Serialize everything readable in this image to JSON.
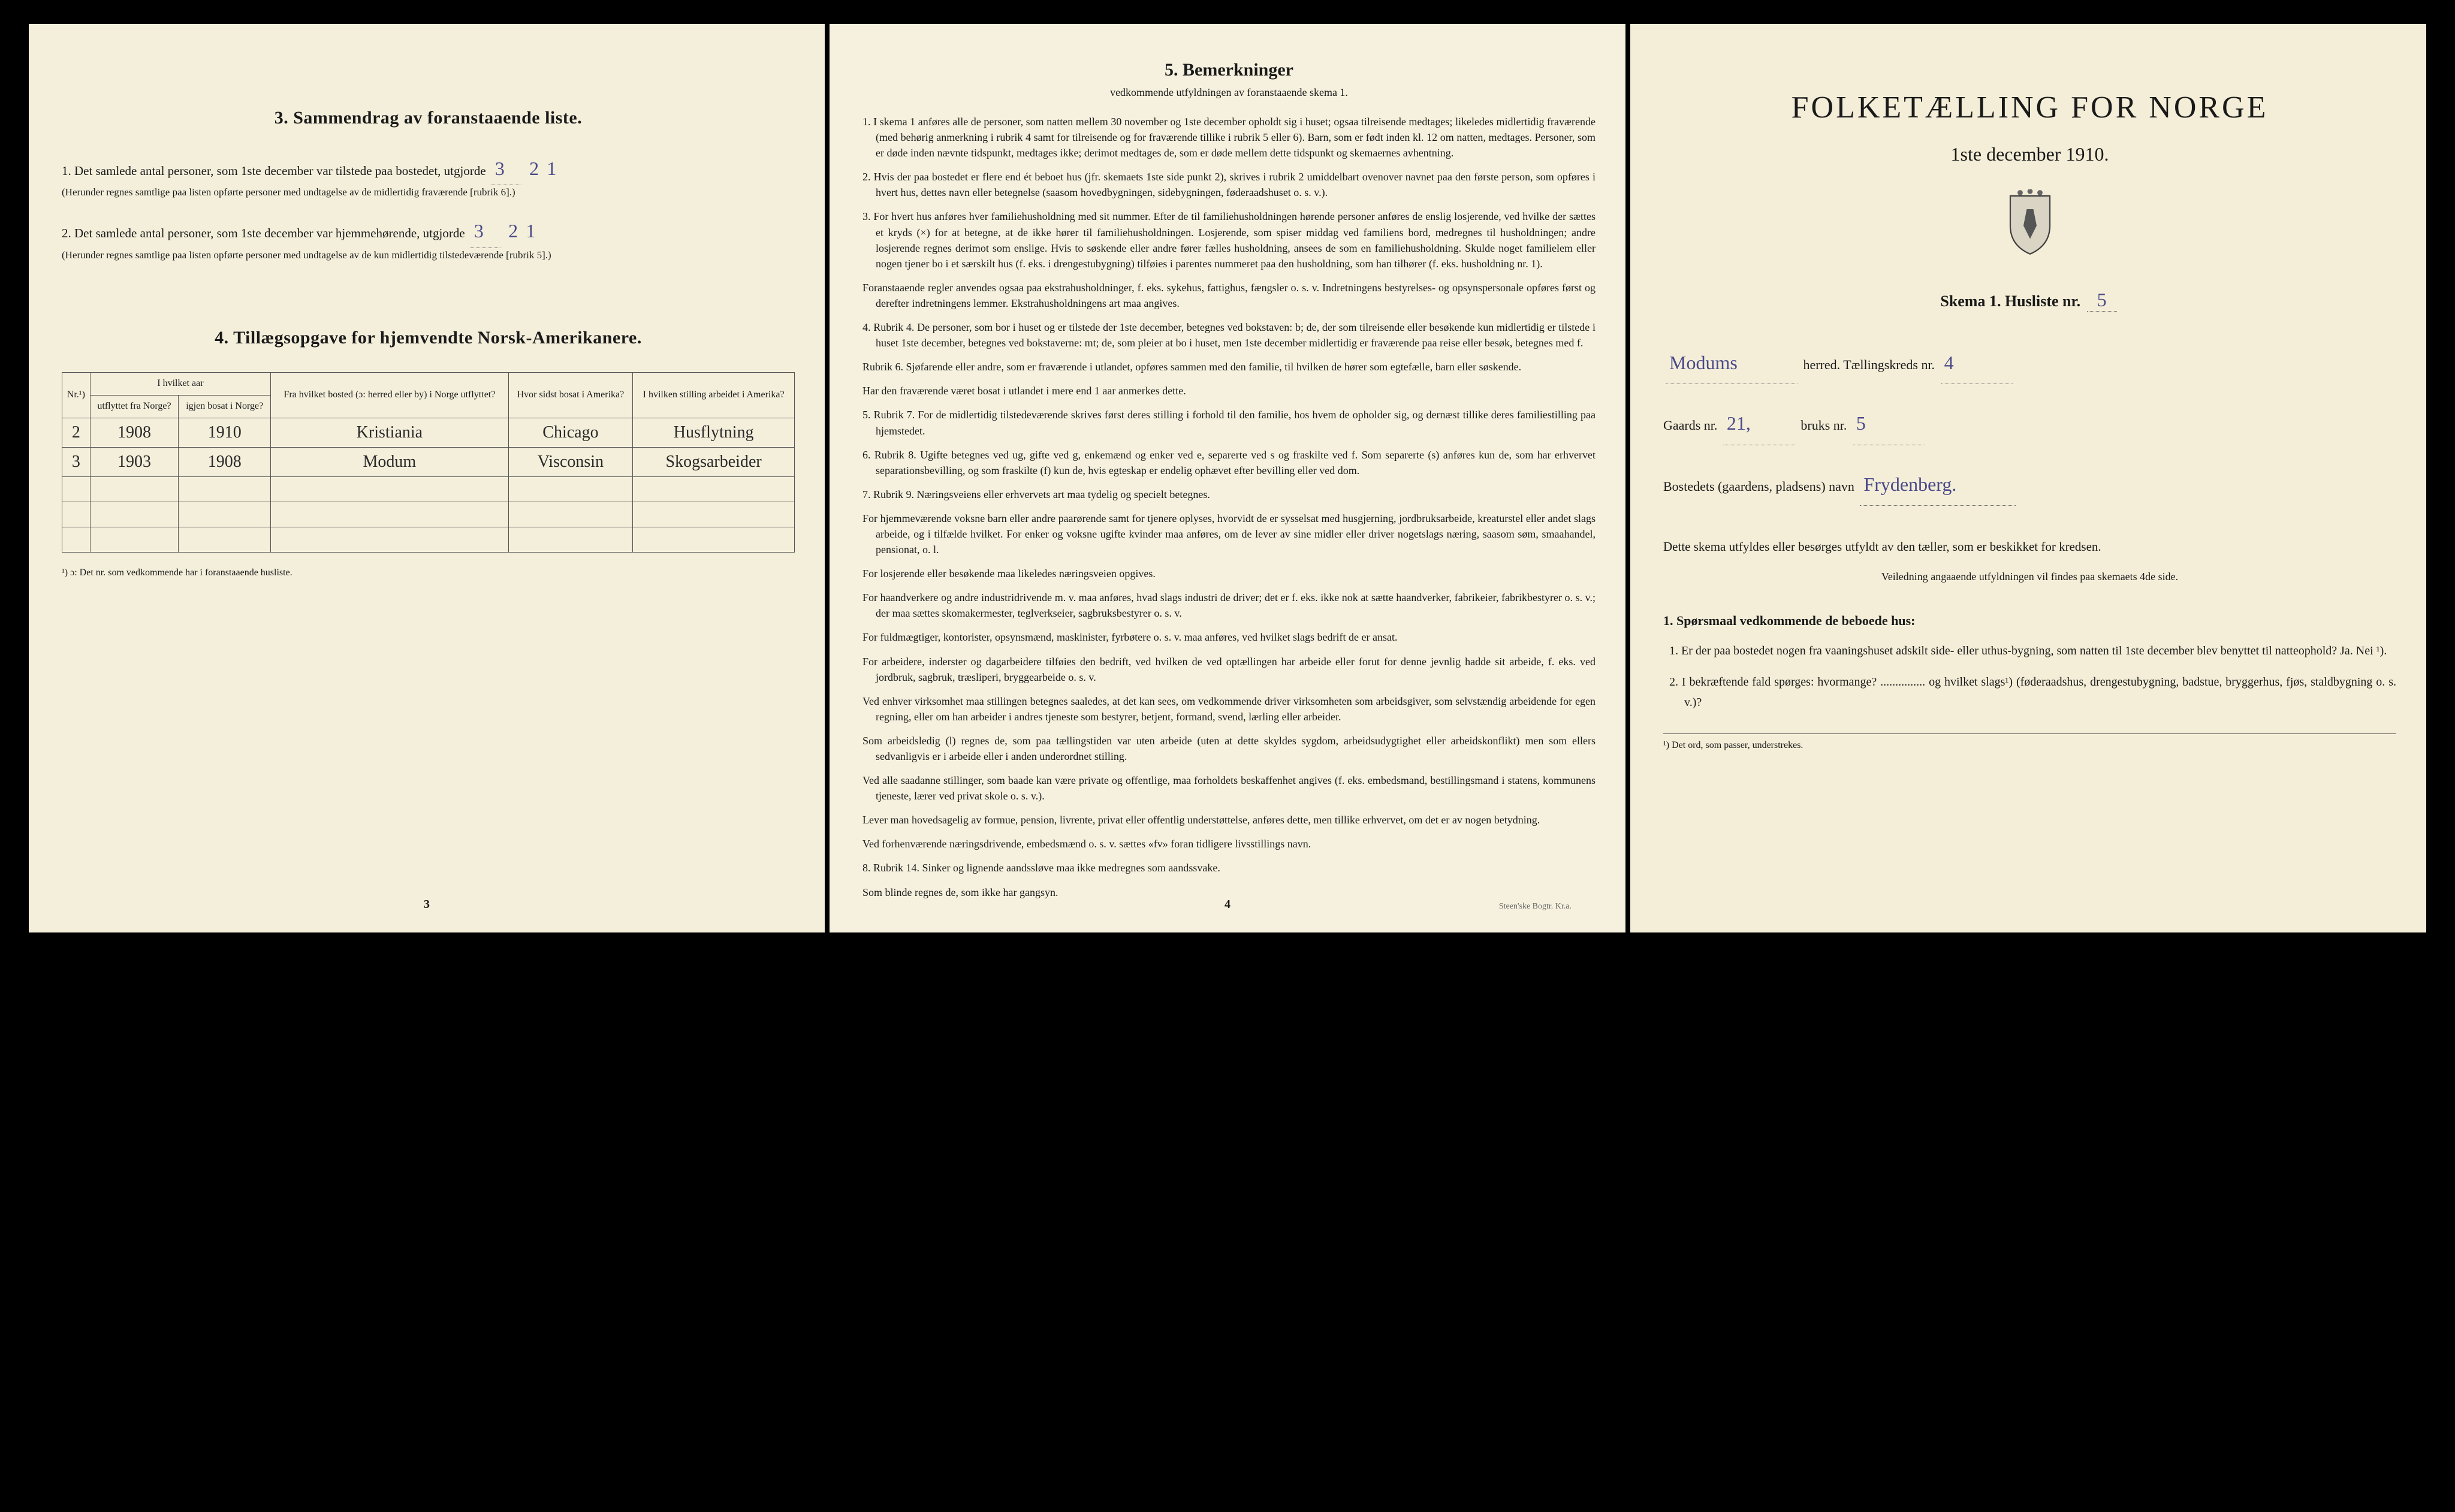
{
  "colors": {
    "paper_left": "#f4efdb",
    "paper_mid": "#f6f1de",
    "paper_right": "#f4eed8",
    "ink": "#1a1a1a",
    "handwriting": "#4a4a8a",
    "background": "#000000"
  },
  "left": {
    "section3": {
      "heading": "3.   Sammendrag av foranstaaende liste.",
      "item1_pre": "1.  Det samlede antal personer, som 1ste december var tilstede paa bostedet, utgjorde",
      "item1_hw1": "3",
      "item1_hw2": "2",
      "item1_hw3": "1",
      "item1_fine": "(Herunder regnes samtlige paa listen opførte personer med undtagelse av de midlertidig fraværende [rubrik 6].)",
      "item2_pre": "2.  Det samlede antal personer, som 1ste december var hjemmehørende, utgjorde",
      "item2_hw1": "3",
      "item2_hw2": "2",
      "item2_hw3": "1",
      "item2_fine": "(Herunder regnes samtlige paa listen opførte personer med undtagelse av de kun midlertidig tilstedeværende [rubrik 5].)"
    },
    "section4": {
      "heading": "4.   Tillægsopgave for hjemvendte Norsk-Amerikanere.",
      "columns": {
        "c0": "Nr.¹)",
        "c1_top": "I hvilket aar",
        "c1a": "utflyttet fra Norge?",
        "c1b": "igjen bosat i Norge?",
        "c2": "Fra hvilket bosted (ɔ: herred eller by) i Norge utflyttet?",
        "c3": "Hvor sidst bosat i Amerika?",
        "c4": "I hvilken stilling arbeidet i Amerika?"
      },
      "rows": [
        {
          "nr": "2",
          "ut": "1908",
          "igjen": "1910",
          "fra": "Kristiania",
          "hvor": "Chicago",
          "stilling": "Husflytning"
        },
        {
          "nr": "3",
          "ut": "1903",
          "igjen": "1908",
          "fra": "Modum",
          "hvor": "Visconsin",
          "stilling": "Skogsarbeider"
        }
      ],
      "footnote": "¹) ɔ: Det nr. som vedkommende har i foranstaaende husliste."
    },
    "pagenum": "3"
  },
  "mid": {
    "heading": "5.   Bemerkninger",
    "subheading": "vedkommende utfyldningen av foranstaaende skema 1.",
    "items": [
      "1.  I skema 1 anføres alle de personer, som natten mellem 30 november og 1ste december opholdt sig i huset; ogsaa tilreisende medtages; likeledes midlertidig fraværende (med behørig anmerkning i rubrik 4 samt for tilreisende og for fraværende tillike i rubrik 5 eller 6). Barn, som er født inden kl. 12 om natten, medtages. Personer, som er døde inden nævnte tidspunkt, medtages ikke; derimot medtages de, som er døde mellem dette tidspunkt og skemaernes avhentning.",
      "2.  Hvis der paa bostedet er flere end ét beboet hus (jfr. skemaets 1ste side punkt 2), skrives i rubrik 2 umiddelbart ovenover navnet paa den første person, som opføres i hvert hus, dettes navn eller betegnelse (saasom hovedbygningen, sidebygningen, føderaadshuset o. s. v.).",
      "3.  For hvert hus anføres hver familiehusholdning med sit nummer. Efter de til familiehusholdningen hørende personer anføres de enslig losjerende, ved hvilke der sættes et kryds (×) for at betegne, at de ikke hører til familiehusholdningen. Losjerende, som spiser middag ved familiens bord, medregnes til husholdningen; andre losjerende regnes derimot som enslige. Hvis to søskende eller andre fører fælles husholdning, ansees de som en familiehusholdning. Skulde noget familielem eller nogen tjener bo i et særskilt hus (f. eks. i drengestubygning) tilføies i parentes nummeret paa den husholdning, som han tilhører (f. eks. husholdning nr. 1).",
      "Foranstaaende regler anvendes ogsaa paa ekstrahusholdninger, f. eks. sykehus, fattighus, fængsler o. s. v. Indretningens bestyrelses- og opsynspersonale opføres først og derefter indretningens lemmer. Ekstrahusholdningens art maa angives.",
      "4.  Rubrik 4. De personer, som bor i huset og er tilstede der 1ste december, betegnes ved bokstaven: b; de, der som tilreisende eller besøkende kun midlertidig er tilstede i huset 1ste december, betegnes ved bokstaverne: mt; de, som pleier at bo i huset, men 1ste december midlertidig er fraværende paa reise eller besøk, betegnes med f.",
      "Rubrik 6. Sjøfarende eller andre, som er fraværende i utlandet, opføres sammen med den familie, til hvilken de hører som egtefælle, barn eller søskende.",
      "Har den fraværende været bosat i utlandet i mere end 1 aar anmerkes dette.",
      "5.  Rubrik 7. For de midlertidig tilstedeværende skrives først deres stilling i forhold til den familie, hos hvem de opholder sig, og dernæst tillike deres familiestilling paa hjemstedet.",
      "6.  Rubrik 8. Ugifte betegnes ved ug, gifte ved g, enkemænd og enker ved e, separerte ved s og fraskilte ved f. Som separerte (s) anføres kun de, som har erhvervet separationsbevilling, og som fraskilte (f) kun de, hvis egteskap er endelig ophævet efter bevilling eller ved dom.",
      "7.  Rubrik 9. Næringsveiens eller erhvervets art maa tydelig og specielt betegnes.",
      "For hjemmeværende voksne barn eller andre paarørende samt for tjenere oplyses, hvorvidt de er sysselsat med husgjerning, jordbruksarbeide, kreaturstel eller andet slags arbeide, og i tilfælde hvilket. For enker og voksne ugifte kvinder maa anføres, om de lever av sine midler eller driver nogetslags næring, saasom søm, smaahandel, pensionat, o. l.",
      "For losjerende eller besøkende maa likeledes næringsveien opgives.",
      "For haandverkere og andre industridrivende m. v. maa anføres, hvad slags industri de driver; det er f. eks. ikke nok at sætte haandverker, fabrikeier, fabrikbestyrer o. s. v.; der maa sættes skomakermester, teglverkseier, sagbruksbestyrer o. s. v.",
      "For fuldmægtiger, kontorister, opsynsmænd, maskinister, fyrbøtere o. s. v. maa anføres, ved hvilket slags bedrift de er ansat.",
      "For arbeidere, inderster og dagarbeidere tilføies den bedrift, ved hvilken de ved optællingen har arbeide eller forut for denne jevnlig hadde sit arbeide, f. eks. ved jordbruk, sagbruk, træsliperi, bryggearbeide o. s. v.",
      "Ved enhver virksomhet maa stillingen betegnes saaledes, at det kan sees, om vedkommende driver virksomheten som arbeidsgiver, som selvstændig arbeidende for egen regning, eller om han arbeider i andres tjeneste som bestyrer, betjent, formand, svend, lærling eller arbeider.",
      "Som arbeidsledig (l) regnes de, som paa tællingstiden var uten arbeide (uten at dette skyldes sygdom, arbeidsudygtighet eller arbeidskonflikt) men som ellers sedvanligvis er i arbeide eller i anden underordnet stilling.",
      "Ved alle saadanne stillinger, som baade kan være private og offentlige, maa forholdets beskaffenhet angives (f. eks. embedsmand, bestillingsmand i statens, kommunens tjeneste, lærer ved privat skole o. s. v.).",
      "Lever man hovedsagelig av formue, pension, livrente, privat eller offentlig understøttelse, anføres dette, men tillike erhvervet, om det er av nogen betydning.",
      "Ved forhenværende næringsdrivende, embedsmænd o. s. v. sættes «fv» foran tidligere livsstillings navn.",
      "8.  Rubrik 14. Sinker og lignende aandssløve maa ikke medregnes som aandssvake.",
      "Som blinde regnes de, som ikke har gangsyn."
    ],
    "pagenum": "4",
    "imprint": "Steen'ske Bogtr.  Kr.a."
  },
  "right": {
    "title": "FOLKETÆLLING FOR NORGE",
    "date": "1ste december 1910.",
    "skema_label": "Skema 1.   Husliste nr.",
    "skema_hw": "5",
    "herred_label": "herred.   Tællingskreds nr.",
    "herred_hw": "Modums",
    "kreds_hw": "4",
    "gaards_label": "Gaards nr.",
    "gaards_hw": "21,",
    "bruks_label": "bruks nr.",
    "bruks_hw": "5",
    "bosted_label": "Bostedets (gaardens, pladsens) navn",
    "bosted_hw": "Frydenberg.",
    "body1": "Dette skema utfyldes eller besørges utfyldt av den tæller, som er beskikket for kredsen.",
    "veil": "Veiledning angaaende utfyldningen vil findes paa skemaets 4de side.",
    "s1_hdr": "1.  Spørsmaal vedkommende de beboede hus:",
    "q1": "1.  Er der paa bostedet nogen fra vaaningshuset adskilt side- eller uthus-bygning, som natten til 1ste december blev benyttet til natteophold?   Ja.   Nei ¹).",
    "q2": "2.  I bekræftende fald spørges: hvormange? ............... og hvilket slags¹) (føderaadshus, drengestubygning, badstue, bryggerhus, fjøs, staldbygning o. s. v.)?",
    "footrule": "¹) Det ord, som passer, understrekes."
  }
}
